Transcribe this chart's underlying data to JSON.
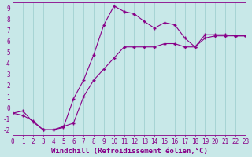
{
  "line1_x": [
    0,
    1,
    2,
    3,
    4,
    5,
    6,
    7,
    8,
    9,
    10,
    11,
    12,
    13,
    14,
    15,
    16,
    17,
    18,
    19,
    20,
    21,
    22,
    23
  ],
  "line1_y": [
    -0.5,
    -0.7,
    -1.2,
    -2.0,
    -2.0,
    -1.8,
    0.8,
    2.5,
    4.8,
    7.5,
    9.2,
    8.7,
    8.5,
    7.8,
    7.2,
    7.7,
    7.5,
    6.3,
    5.5,
    6.6,
    6.6,
    6.6,
    6.5,
    6.5
  ],
  "line2_x": [
    0,
    1,
    2,
    3,
    4,
    5,
    6,
    7,
    8,
    9,
    10,
    11,
    12,
    13,
    14,
    15,
    16,
    17,
    18,
    19,
    20,
    21,
    22,
    23
  ],
  "line2_y": [
    -0.5,
    -0.3,
    -1.3,
    -2.0,
    -2.0,
    -1.7,
    -1.4,
    1.0,
    2.5,
    3.5,
    4.5,
    5.5,
    5.5,
    5.5,
    5.5,
    5.8,
    5.8,
    5.5,
    5.5,
    6.3,
    6.5,
    6.5,
    6.5,
    6.5
  ],
  "line_color": "#880088",
  "bg_color": "#c8e8e8",
  "grid_color": "#99cccc",
  "xlabel": "Windchill (Refroidissement éolien,°C)",
  "xticks": [
    0,
    1,
    2,
    3,
    4,
    5,
    6,
    7,
    8,
    9,
    10,
    11,
    12,
    13,
    14,
    15,
    16,
    17,
    18,
    19,
    20,
    21,
    22,
    23
  ],
  "yticks": [
    -2,
    -1,
    0,
    1,
    2,
    3,
    4,
    5,
    6,
    7,
    8,
    9
  ],
  "xlim": [
    0,
    23
  ],
  "ylim": [
    -2.5,
    9.5
  ],
  "tick_fontsize": 5.5,
  "xlabel_fontsize": 6.5
}
